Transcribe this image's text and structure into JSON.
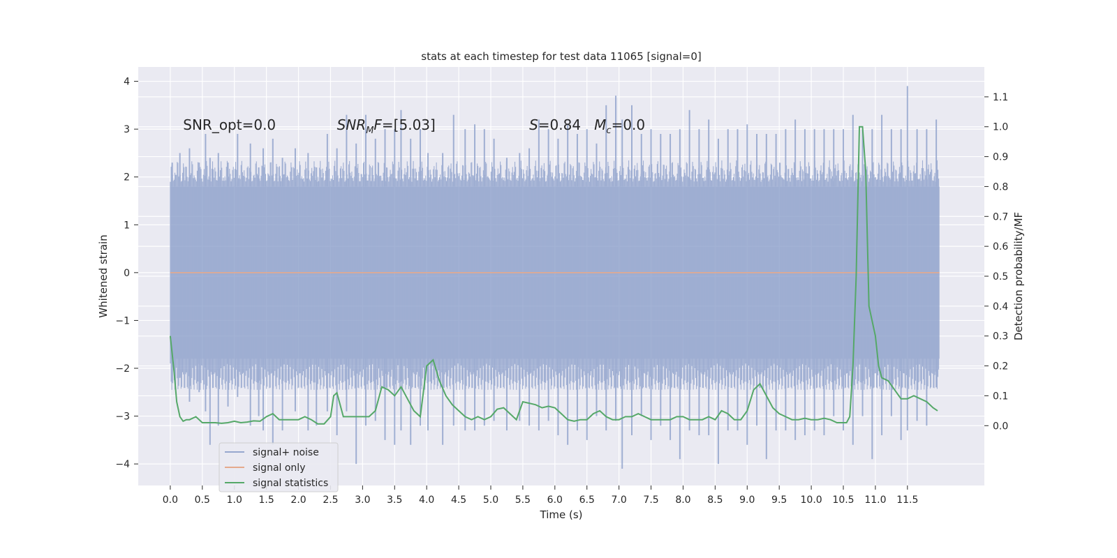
{
  "chart_data": {
    "type": "line",
    "title": "stats at each timestep for test data 11065 [signal=0]",
    "xlabel": "Time (s)",
    "ylabel_left": "Whitened strain",
    "ylabel_right": "Detection probability/MF",
    "xlim": [
      -0.5,
      12.7
    ],
    "ylim_left": [
      -4.45,
      4.3
    ],
    "ylim_right": [
      -0.2,
      1.2
    ],
    "x_ticks": [
      0.0,
      0.5,
      1.0,
      1.5,
      2.0,
      2.5,
      3.0,
      3.5,
      4.0,
      4.5,
      5.0,
      5.5,
      6.0,
      6.5,
      7.0,
      7.5,
      8.0,
      8.5,
      9.0,
      9.5,
      10.0,
      10.5,
      11.0,
      11.5
    ],
    "x_tick_labels": [
      "0.0",
      "0.5",
      "1.0",
      "1.5",
      "2.0",
      "2.5",
      "3.0",
      "3.5",
      "4.0",
      "4.5",
      "5.0",
      "5.5",
      "6.0",
      "6.5",
      "7.0",
      "7.5",
      "8.0",
      "8.5",
      "9.0",
      "9.5",
      "10.0",
      "10.5",
      "11.0",
      "11.5"
    ],
    "y_left_ticks": [
      -4,
      -3,
      -2,
      -1,
      0,
      1,
      2,
      3,
      4
    ],
    "y_left_tick_labels": [
      "−4",
      "−3",
      "−2",
      "−1",
      "0",
      "1",
      "2",
      "3",
      "4"
    ],
    "y_right_ticks": [
      0.0,
      0.1,
      0.2,
      0.3,
      0.4,
      0.5,
      0.6,
      0.7,
      0.8,
      0.9,
      1.0,
      1.1
    ],
    "y_right_tick_labels": [
      "0.0",
      "0.1",
      "0.2",
      "0.3",
      "0.4",
      "0.5",
      "0.6",
      "0.7",
      "0.8",
      "0.9",
      "1.0",
      "1.1"
    ],
    "grid": true,
    "legend_position": "lower-left",
    "annotations": [
      {
        "text": "SNR_opt=0.0",
        "x": 0.2,
        "y_right": 0.99
      },
      {
        "text": "SNR_MF=[5.03]",
        "x": 2.6,
        "y_right": 0.99
      },
      {
        "text": "S=0.84   M_c=0.0",
        "x": 5.6,
        "y_right": 0.99
      }
    ],
    "series": [
      {
        "name": "signal+ noise",
        "axis": "left",
        "color": "#8da0cb",
        "style": "noise-band",
        "x_range": [
          0.0,
          12.0
        ],
        "core_band": [
          -1.8,
          1.8
        ],
        "spikes": [
          [
            0.03,
            2.3,
            -2.3
          ],
          [
            0.15,
            2.5,
            -2.2
          ],
          [
            0.3,
            2.6,
            -2.7
          ],
          [
            0.45,
            2.3,
            -2.5
          ],
          [
            0.55,
            2.9,
            -2.9
          ],
          [
            0.62,
            2.4,
            -3.6
          ],
          [
            0.75,
            2.5,
            -3.2
          ],
          [
            0.9,
            2.3,
            -2.8
          ],
          [
            1.05,
            2.9,
            -2.6
          ],
          [
            1.25,
            2.7,
            -3.2
          ],
          [
            1.38,
            2.2,
            -3.0
          ],
          [
            1.45,
            2.6,
            -3.3
          ],
          [
            1.6,
            2.8,
            -3.6
          ],
          [
            1.75,
            2.4,
            -3.3
          ],
          [
            1.95,
            2.6,
            -2.9
          ],
          [
            2.15,
            2.5,
            -3.3
          ],
          [
            2.28,
            2.2,
            -3.2
          ],
          [
            2.45,
            2.9,
            -2.9
          ],
          [
            2.6,
            2.6,
            -3.4
          ],
          [
            2.75,
            3.3,
            -2.9
          ],
          [
            2.9,
            2.7,
            -4.0
          ],
          [
            3.05,
            3.3,
            -3.2
          ],
          [
            3.2,
            2.8,
            -3.1
          ],
          [
            3.35,
            3.0,
            -3.5
          ],
          [
            3.5,
            3.0,
            -3.6
          ],
          [
            3.6,
            3.4,
            -3.3
          ],
          [
            3.75,
            2.8,
            -3.6
          ],
          [
            3.9,
            3.0,
            -3.2
          ],
          [
            4.02,
            2.5,
            -3.3
          ],
          [
            4.25,
            2.5,
            -3.6
          ],
          [
            4.42,
            3.3,
            -3.2
          ],
          [
            4.6,
            3.0,
            -3.3
          ],
          [
            4.75,
            3.1,
            -3.3
          ],
          [
            4.9,
            3.0,
            -3.2
          ],
          [
            5.05,
            2.8,
            -3.1
          ],
          [
            5.25,
            2.4,
            -3.3
          ],
          [
            5.45,
            2.5,
            -3.1
          ],
          [
            5.6,
            2.6,
            -3.2
          ],
          [
            5.75,
            3.2,
            -3.3
          ],
          [
            5.9,
            3.0,
            -3.1
          ],
          [
            6.05,
            2.8,
            -3.4
          ],
          [
            6.2,
            3.1,
            -3.6
          ],
          [
            6.35,
            2.9,
            -3.3
          ],
          [
            6.5,
            3.0,
            -3.5
          ],
          [
            6.65,
            2.7,
            -3.0
          ],
          [
            6.8,
            3.5,
            -3.3
          ],
          [
            6.95,
            3.7,
            -3.1
          ],
          [
            7.05,
            3.2,
            -4.1
          ],
          [
            7.2,
            3.5,
            -3.4
          ],
          [
            7.35,
            2.9,
            -3.0
          ],
          [
            7.5,
            3.0,
            -3.5
          ],
          [
            7.65,
            2.9,
            -3.2
          ],
          [
            7.8,
            2.9,
            -3.5
          ],
          [
            7.95,
            3.0,
            -3.9
          ],
          [
            8.1,
            3.4,
            -3.3
          ],
          [
            8.25,
            3.0,
            -3.4
          ],
          [
            8.4,
            3.2,
            -3.4
          ],
          [
            8.55,
            2.8,
            -4.0
          ],
          [
            8.7,
            3.0,
            -3.3
          ],
          [
            8.85,
            3.0,
            -3.3
          ],
          [
            9.0,
            3.1,
            -3.6
          ],
          [
            9.15,
            2.9,
            -3.2
          ],
          [
            9.3,
            2.9,
            -3.9
          ],
          [
            9.45,
            2.9,
            -3.3
          ],
          [
            9.6,
            3.0,
            -3.3
          ],
          [
            9.75,
            3.2,
            -3.5
          ],
          [
            9.9,
            3.0,
            -3.4
          ],
          [
            10.05,
            3.0,
            -3.3
          ],
          [
            10.2,
            3.0,
            -3.4
          ],
          [
            10.35,
            3.0,
            -3.0
          ],
          [
            10.5,
            3.0,
            -3.3
          ],
          [
            10.65,
            3.3,
            -3.6
          ],
          [
            10.8,
            3.0,
            -3.0
          ],
          [
            10.95,
            3.0,
            -3.9
          ],
          [
            11.1,
            3.3,
            -3.4
          ],
          [
            11.25,
            3.0,
            -3.0
          ],
          [
            11.4,
            3.0,
            -3.5
          ],
          [
            11.5,
            3.9,
            -3.3
          ],
          [
            11.65,
            3.0,
            -3.1
          ],
          [
            11.8,
            3.0,
            -3.2
          ],
          [
            11.95,
            3.2,
            -2.4
          ]
        ]
      },
      {
        "name": "signal only",
        "axis": "left",
        "color": "#e5a98c",
        "x": [
          0.0,
          12.0
        ],
        "y": [
          0.0,
          0.0
        ]
      },
      {
        "name": "signal statistics",
        "axis": "right",
        "color": "#55a868",
        "x": [
          0.0,
          0.06,
          0.1,
          0.15,
          0.2,
          0.25,
          0.3,
          0.4,
          0.45,
          0.5,
          0.6,
          0.7,
          0.8,
          0.9,
          1.0,
          1.1,
          1.2,
          1.3,
          1.4,
          1.5,
          1.6,
          1.7,
          1.8,
          1.9,
          2.0,
          2.1,
          2.2,
          2.3,
          2.4,
          2.5,
          2.55,
          2.6,
          2.7,
          2.8,
          2.9,
          3.0,
          3.1,
          3.2,
          3.3,
          3.4,
          3.5,
          3.6,
          3.7,
          3.8,
          3.9,
          4.0,
          4.1,
          4.2,
          4.3,
          4.4,
          4.5,
          4.6,
          4.7,
          4.8,
          4.9,
          5.0,
          5.1,
          5.2,
          5.3,
          5.4,
          5.5,
          5.6,
          5.7,
          5.8,
          5.9,
          6.0,
          6.1,
          6.2,
          6.3,
          6.4,
          6.5,
          6.6,
          6.7,
          6.8,
          6.9,
          7.0,
          7.1,
          7.2,
          7.3,
          7.4,
          7.5,
          7.6,
          7.7,
          7.8,
          7.9,
          8.0,
          8.1,
          8.2,
          8.3,
          8.4,
          8.5,
          8.6,
          8.7,
          8.8,
          8.9,
          9.0,
          9.1,
          9.2,
          9.3,
          9.4,
          9.5,
          9.6,
          9.7,
          9.8,
          9.9,
          10.0,
          10.1,
          10.2,
          10.3,
          10.4,
          10.5,
          10.55,
          10.6,
          10.65,
          10.7,
          10.75,
          10.8,
          10.85,
          10.9,
          11.0,
          11.05,
          11.1,
          11.2,
          11.3,
          11.4,
          11.5,
          11.6,
          11.7,
          11.8,
          11.9,
          11.97
        ],
        "y": [
          0.3,
          0.18,
          0.08,
          0.03,
          0.015,
          0.02,
          0.02,
          0.03,
          0.02,
          0.01,
          0.01,
          0.01,
          0.008,
          0.01,
          0.015,
          0.01,
          0.012,
          0.016,
          0.015,
          0.03,
          0.04,
          0.02,
          0.02,
          0.02,
          0.02,
          0.03,
          0.02,
          0.006,
          0.006,
          0.03,
          0.1,
          0.11,
          0.03,
          0.03,
          0.03,
          0.03,
          0.03,
          0.05,
          0.13,
          0.12,
          0.1,
          0.13,
          0.09,
          0.05,
          0.03,
          0.2,
          0.22,
          0.15,
          0.1,
          0.07,
          0.05,
          0.03,
          0.02,
          0.03,
          0.02,
          0.03,
          0.055,
          0.06,
          0.04,
          0.02,
          0.08,
          0.075,
          0.07,
          0.06,
          0.065,
          0.06,
          0.04,
          0.02,
          0.015,
          0.02,
          0.02,
          0.04,
          0.05,
          0.03,
          0.02,
          0.02,
          0.03,
          0.03,
          0.04,
          0.03,
          0.02,
          0.02,
          0.02,
          0.02,
          0.03,
          0.03,
          0.02,
          0.02,
          0.02,
          0.03,
          0.02,
          0.05,
          0.04,
          0.02,
          0.02,
          0.05,
          0.12,
          0.14,
          0.1,
          0.06,
          0.04,
          0.03,
          0.02,
          0.02,
          0.025,
          0.02,
          0.02,
          0.025,
          0.02,
          0.01,
          0.01,
          0.01,
          0.03,
          0.2,
          0.5,
          1.0,
          1.0,
          0.85,
          0.4,
          0.3,
          0.2,
          0.16,
          0.15,
          0.12,
          0.09,
          0.09,
          0.1,
          0.09,
          0.08,
          0.06,
          0.05
        ]
      }
    ]
  }
}
